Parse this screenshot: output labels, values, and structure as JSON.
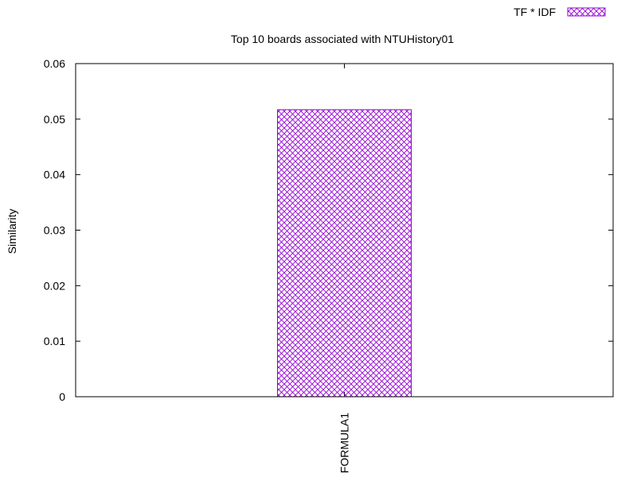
{
  "chart_data": {
    "type": "bar",
    "title": "Top 10 boards associated with NTUHistory01",
    "xlabel": "",
    "ylabel": "Similarity",
    "categories": [
      "FORMULA1"
    ],
    "series": [
      {
        "name": "TF * IDF",
        "values": [
          0.0517
        ],
        "color": "#9400d3",
        "fill": "crosshatch"
      }
    ],
    "ylim": [
      0,
      0.06
    ],
    "yticks": [
      "0",
      "0.01",
      "0.02",
      "0.03",
      "0.04",
      "0.05",
      "0.06"
    ],
    "grid": false,
    "legend_position": "top-right"
  }
}
